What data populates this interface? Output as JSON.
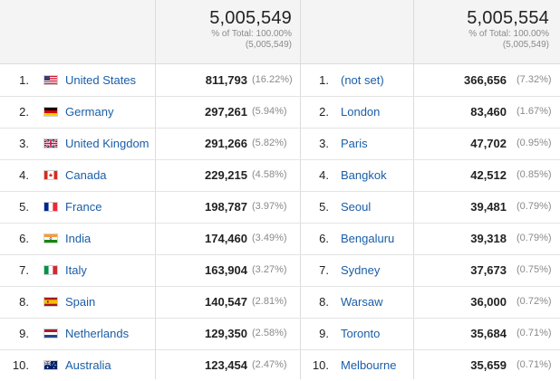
{
  "header": {
    "left_total": "5,005,549",
    "left_pct": "% of Total: 100.00%",
    "left_paren": "(5,005,549)",
    "right_total": "5,005,554",
    "right_pct": "% of Total: 100.00%",
    "right_paren": "(5,005,549)"
  },
  "rows": [
    {
      "idx": "1.",
      "country": "United States",
      "flag": "us-flag-icon",
      "country_value": "811,793",
      "country_pct": "(16.22%)",
      "city": "(not set)",
      "city_value": "366,656",
      "city_pct": "(7.32%)"
    },
    {
      "idx": "2.",
      "country": "Germany",
      "flag": "de-flag-icon",
      "country_value": "297,261",
      "country_pct": "(5.94%)",
      "city": "London",
      "city_value": "83,460",
      "city_pct": "(1.67%)"
    },
    {
      "idx": "3.",
      "country": "United Kingdom",
      "flag": "gb-flag-icon",
      "country_value": "291,266",
      "country_pct": "(5.82%)",
      "city": "Paris",
      "city_value": "47,702",
      "city_pct": "(0.95%)"
    },
    {
      "idx": "4.",
      "country": "Canada",
      "flag": "ca-flag-icon",
      "country_value": "229,215",
      "country_pct": "(4.58%)",
      "city": "Bangkok",
      "city_value": "42,512",
      "city_pct": "(0.85%)"
    },
    {
      "idx": "5.",
      "country": "France",
      "flag": "fr-flag-icon",
      "country_value": "198,787",
      "country_pct": "(3.97%)",
      "city": "Seoul",
      "city_value": "39,481",
      "city_pct": "(0.79%)"
    },
    {
      "idx": "6.",
      "country": "India",
      "flag": "in-flag-icon",
      "country_value": "174,460",
      "country_pct": "(3.49%)",
      "city": "Bengaluru",
      "city_value": "39,318",
      "city_pct": "(0.79%)"
    },
    {
      "idx": "7.",
      "country": "Italy",
      "flag": "it-flag-icon",
      "country_value": "163,904",
      "country_pct": "(3.27%)",
      "city": "Sydney",
      "city_value": "37,673",
      "city_pct": "(0.75%)"
    },
    {
      "idx": "8.",
      "country": "Spain",
      "flag": "es-flag-icon",
      "country_value": "140,547",
      "country_pct": "(2.81%)",
      "city": "Warsaw",
      "city_value": "36,000",
      "city_pct": "(0.72%)"
    },
    {
      "idx": "9.",
      "country": "Netherlands",
      "flag": "nl-flag-icon",
      "country_value": "129,350",
      "country_pct": "(2.58%)",
      "city": "Toronto",
      "city_value": "35,684",
      "city_pct": "(0.71%)"
    },
    {
      "idx": "10.",
      "country": "Australia",
      "flag": "au-flag-icon",
      "country_value": "123,454",
      "country_pct": "(2.47%)",
      "city": "Melbourne",
      "city_value": "35,659",
      "city_pct": "(0.71%)"
    }
  ],
  "colors": {
    "link": "#1a5ea7",
    "header_bg": "#f4f4f4",
    "muted": "#8a8a8a"
  }
}
